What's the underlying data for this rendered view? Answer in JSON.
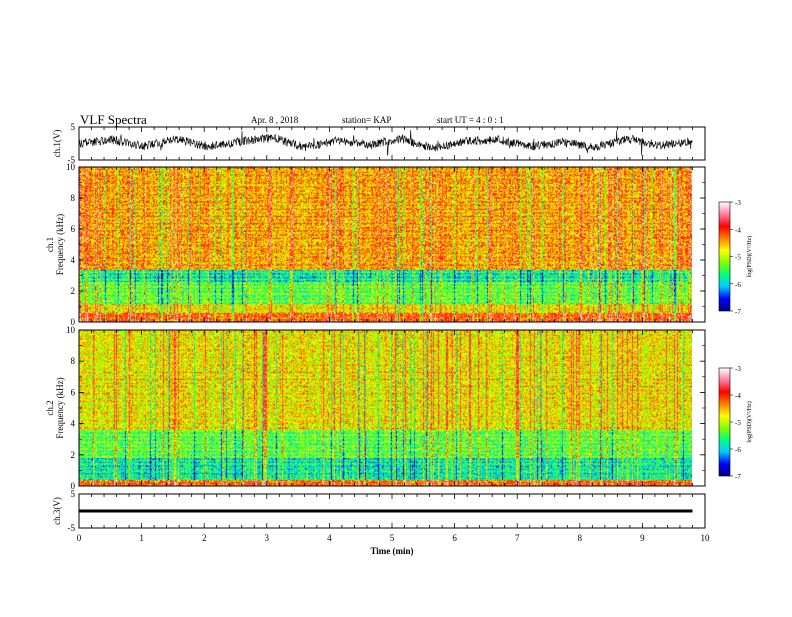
{
  "header": {
    "title": "VLF Spectra",
    "date": "Apr. 8  , 2018",
    "station": "station= KAP",
    "start_ut": "start  UT  =   4 : 0  : 1"
  },
  "chart_data": [
    {
      "type": "line",
      "panel": "ch1-waveform",
      "ylabel": "ch.1(V)",
      "ylim": [
        -5,
        5
      ],
      "y_ticks": [
        "5",
        "-5"
      ],
      "xlim": [
        0,
        10
      ],
      "data_extent_min": 9.8,
      "series_color": "#000000",
      "mean_envelope_V": [
        0.0,
        1.2,
        -0.8,
        1.5,
        -1.0,
        0.6,
        1.8,
        -1.2,
        0.9,
        -0.3,
        1.4,
        -1.5,
        0.7,
        1.1,
        -0.9,
        0.4,
        -1.3,
        1.6,
        -0.6,
        0.8
      ]
    },
    {
      "type": "heatmap",
      "panel": "ch1-spectrogram",
      "ylabel_channel": "ch.1",
      "ylabel": "Frequency  (kHz)",
      "ylim": [
        0,
        10
      ],
      "y_ticks": [
        "0",
        "2",
        "4",
        "6",
        "8",
        "10"
      ],
      "xlim": [
        0,
        10
      ],
      "data_extent_min": 9.8,
      "colorbar": {
        "label": "log(PSD)(V²/Hz)",
        "range": [
          -7,
          -3
        ],
        "ticks": [
          "-3",
          "-4",
          "-5",
          "-6",
          "-7"
        ],
        "colors": [
          "#000080",
          "#0000ff",
          "#00c8ff",
          "#00ff80",
          "#80ff00",
          "#ffff00",
          "#ff8000",
          "#ff0000",
          "#ff80a0",
          "#ffffff"
        ]
      },
      "band_structure_kHz": [
        {
          "f_from": 0.0,
          "f_to": 0.6,
          "level": "high"
        },
        {
          "f_from": 0.6,
          "f_to": 1.2,
          "level": "medium"
        },
        {
          "f_from": 1.2,
          "f_to": 2.6,
          "level": "low"
        },
        {
          "f_from": 2.6,
          "f_to": 3.4,
          "level": "lowest"
        },
        {
          "f_from": 3.4,
          "f_to": 10.0,
          "level": "medium-high"
        }
      ]
    },
    {
      "type": "heatmap",
      "panel": "ch2-spectrogram",
      "ylabel_channel": "ch.2",
      "ylabel": "Frequency  (kHz)",
      "ylim": [
        0,
        10
      ],
      "y_ticks": [
        "0",
        "2",
        "4",
        "6",
        "8",
        "10"
      ],
      "xlim": [
        0,
        10
      ],
      "data_extent_min": 9.8,
      "colorbar": {
        "label": "log(PSD)(V²/Hz)",
        "range": [
          -7,
          -3
        ],
        "ticks": [
          "-3",
          "-4",
          "-5",
          "-6",
          "-7"
        ],
        "colors": [
          "#000080",
          "#0000ff",
          "#00c8ff",
          "#00ff80",
          "#80ff00",
          "#ffff00",
          "#ff8000",
          "#ff0000",
          "#ff80a0",
          "#ffffff"
        ]
      },
      "band_structure_kHz": [
        {
          "f_from": 0.0,
          "f_to": 0.4,
          "level": "high"
        },
        {
          "f_from": 0.4,
          "f_to": 1.8,
          "level": "lowest"
        },
        {
          "f_from": 1.8,
          "f_to": 3.6,
          "level": "low"
        },
        {
          "f_from": 3.6,
          "f_to": 10.0,
          "level": "medium"
        }
      ]
    },
    {
      "type": "line",
      "panel": "ch3-waveform",
      "ylabel": "ch.3(V)",
      "ylim": [
        -5,
        5
      ],
      "y_ticks": [
        "5",
        "-5"
      ],
      "xlim": [
        0,
        10
      ],
      "data_extent_min": 9.8,
      "constant_value_V": 0.0,
      "series_color": "#000000"
    }
  ],
  "x_axis": {
    "label": "Time  (min)",
    "ticks": [
      "0",
      "1",
      "2",
      "3",
      "4",
      "5",
      "6",
      "7",
      "8",
      "9",
      "10"
    ],
    "range": [
      0,
      10
    ]
  }
}
